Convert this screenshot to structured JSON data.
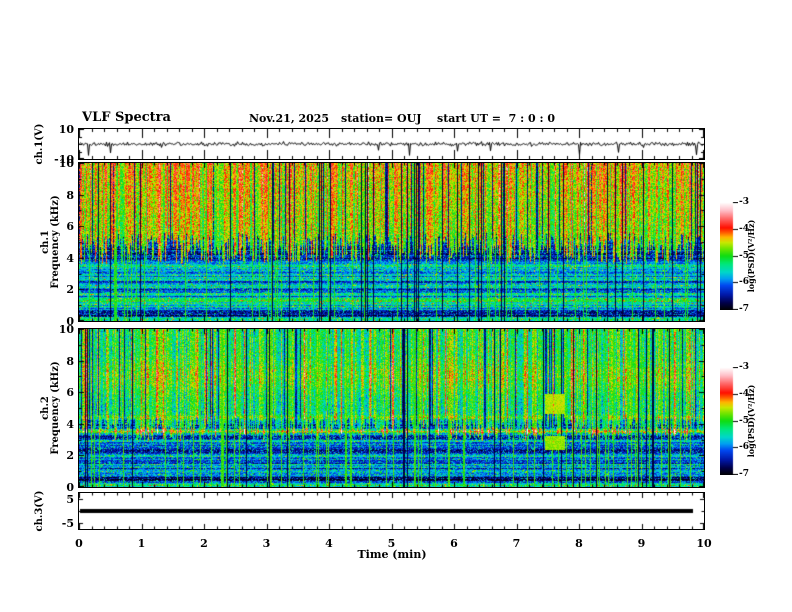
{
  "header": {
    "title": "VLF Spectra",
    "date": "Nov.21, 2025",
    "station": "station= OUJ",
    "start_ut": "start UT =  7 : 0 : 0"
  },
  "labels": {
    "ch1_wave": "ch.1(V)",
    "ch1_spec_line1": "ch.1",
    "ch1_spec_line2": "Frequency (kHz)",
    "ch2_spec_line1": "ch.2",
    "ch2_spec_line2": "Frequency (kHz)",
    "ch3_wave": "ch.3(V)",
    "time_axis": "Time (min)",
    "colorbar": "log(PSD)(V²/Hz)"
  },
  "axes": {
    "time": {
      "label": "Time (min)",
      "ticks": [
        0,
        1,
        2,
        3,
        4,
        5,
        6,
        7,
        8,
        9,
        10
      ],
      "minor_step": 0.2,
      "range": [
        0,
        10
      ]
    },
    "ch1_wave": {
      "ylim": [
        -10,
        10
      ],
      "tick_values": [
        10,
        -10
      ],
      "tick_labels": [
        "10",
        "-10"
      ]
    },
    "spec_freq": {
      "ylim": [
        0,
        10
      ],
      "tick_values": [
        10,
        8,
        6,
        4,
        2,
        0
      ],
      "minor_step": 1
    },
    "ch3_wave": {
      "ylim": [
        -7.5,
        7.5
      ],
      "tick_values": [
        5,
        -5
      ],
      "tick_labels": [
        "5",
        "-5"
      ]
    },
    "colorbar": {
      "ticks": [
        -3,
        -4,
        -5,
        -6,
        -7
      ],
      "range": [
        -7,
        -3
      ]
    }
  },
  "colormap_stops": [
    [
      -7.0,
      "#000006"
    ],
    [
      -6.75,
      "#00004a"
    ],
    [
      -6.45,
      "#0018a8"
    ],
    [
      -6.1,
      "#0048f0"
    ],
    [
      -5.85,
      "#00a0f0"
    ],
    [
      -5.6,
      "#00d8c8"
    ],
    [
      -5.3,
      "#00e87a"
    ],
    [
      -5.0,
      "#10dc10"
    ],
    [
      -4.75,
      "#66e400"
    ],
    [
      -4.5,
      "#c8e800"
    ],
    [
      -4.3,
      "#ffb400"
    ],
    [
      -4.1,
      "#ff5000"
    ],
    [
      -3.95,
      "#ff0f00"
    ],
    [
      -3.6,
      "#ff6a6a"
    ],
    [
      -3.3,
      "#ffbfc8"
    ],
    [
      -3.0,
      "#ffffff"
    ]
  ],
  "chart_data": [
    {
      "type": "line",
      "name": "ch1 waveform",
      "ylabel": "ch.1(V)",
      "ylim": [
        -10,
        10
      ],
      "x_range": [
        0,
        10
      ],
      "description": "broadband noise around 0 V (~±1 V) with intermittent impulsive spikes, mostly downward, reaching about -8 V",
      "texture": {
        "seed": 5,
        "noise_v": 0.6,
        "spike_prob": 0.022,
        "spike_min_v": 2,
        "spike_max_v": 8,
        "down_fraction": 0.78
      }
    },
    {
      "type": "heatmap",
      "name": "ch1 spectrogram",
      "ylabel": "Frequency (kHz)",
      "ylim": [
        0,
        10
      ],
      "xlim": [
        0,
        10
      ],
      "value_label": "log(PSD)(V²/Hz)",
      "value_range": [
        -7,
        -3
      ],
      "description": "strong green/yellow/red vertical striations from ~4.5-10 kHz, dark blue background below ~4.5 kHz with horizontal cyan bands and thin vertical green lines",
      "texture": {
        "seed": 11,
        "boundary_khz": 4.6,
        "boundary_jitter": 1.0,
        "upper_base": -4.75,
        "upper_var": 0.55,
        "top_gradient": 0.35,
        "hot_prob": 0.1,
        "hot_boost": 0.55,
        "red_core_prob": 0.3,
        "gap_prob": 0.06,
        "line_prob": 0.1,
        "line_level": -5.0,
        "dark_line_prob": 0.045,
        "low_base": -6.35,
        "row_noise": 0.4,
        "speckle_prob": 0.13,
        "speckle_amp": 0.85,
        "bands": [
          [
            3.45,
            0.12,
            1.0
          ],
          [
            3.0,
            0.1,
            0.65
          ],
          [
            2.65,
            0.1,
            0.75
          ],
          [
            2.2,
            0.12,
            0.85
          ],
          [
            1.75,
            0.1,
            0.6
          ],
          [
            1.25,
            0.22,
            1.15
          ],
          [
            0.85,
            0.08,
            0.7
          ],
          [
            0.5,
            0.12,
            -0.5
          ],
          [
            0.12,
            0.1,
            1.1
          ]
        ],
        "patches": []
      }
    },
    {
      "type": "heatmap",
      "name": "ch2 spectrogram",
      "ylabel": "Frequency (kHz)",
      "ylim": [
        0,
        10
      ],
      "xlim": [
        0,
        10
      ],
      "value_label": "log(PSD)(V²/Hz)",
      "value_range": [
        -7,
        -3
      ],
      "description": "blue/cyan dominated with green vertical streaks above ~3.7 kHz, dense cyan zone near 6.5-7.5 kHz, strong continuous green line near 3.5 kHz, yellow-green patches near t=7.6 min at ~5 kHz and ~2.8 kHz",
      "texture": {
        "seed": 77,
        "boundary_khz": 3.7,
        "boundary_jitter": 0.8,
        "upper_base": -5.25,
        "upper_var": 0.6,
        "top_gradient": 0.15,
        "hot_prob": 0.07,
        "hot_boost": 0.8,
        "red_core_prob": 0.35,
        "gap_prob": 0.07,
        "line_prob": 0.12,
        "line_level": -4.9,
        "dark_line_prob": 0.03,
        "low_base": -6.3,
        "row_noise": 0.38,
        "speckle_prob": 0.17,
        "speckle_amp": 0.8,
        "bands": [
          [
            7.0,
            0.7,
            0.35
          ],
          [
            4.4,
            0.1,
            0.45
          ],
          [
            3.52,
            0.12,
            1.35
          ],
          [
            2.9,
            0.1,
            0.5
          ],
          [
            1.9,
            0.12,
            0.5
          ],
          [
            1.35,
            0.1,
            0.55
          ],
          [
            0.9,
            0.1,
            0.5
          ],
          [
            0.45,
            0.12,
            -0.4
          ],
          [
            0.12,
            0.1,
            1.0
          ]
        ],
        "patches": [
          [
            7.45,
            7.78,
            4.6,
            5.9,
            -4.55
          ],
          [
            7.45,
            7.78,
            2.35,
            3.25,
            -4.65
          ]
        ]
      }
    },
    {
      "type": "line",
      "name": "ch3 waveform",
      "ylabel": "ch.3(V)",
      "ylim": [
        -7.5,
        7.5
      ],
      "x_range": [
        0,
        10
      ],
      "description": "flat thick line at 0 V ending at about t = 9.8 min",
      "texture": {
        "level_v": 0,
        "end_t_min": 9.8,
        "thickness_px": 4
      }
    }
  ]
}
